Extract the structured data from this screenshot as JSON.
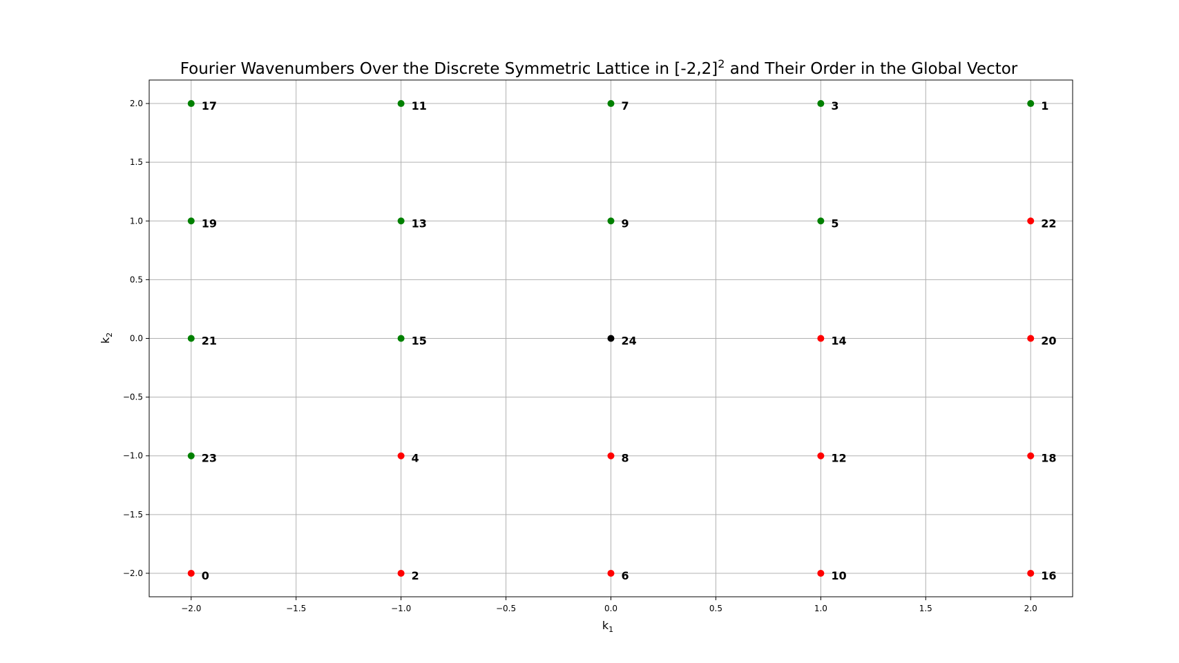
{
  "chart_data": {
    "type": "scatter",
    "title": "Fourier Wavenumbers Over the Discrete Symmetric Lattice in [-2,2]",
    "title_superscript": "2",
    "title_suffix": " and Their Order in the Global Vector",
    "xlabel": "k",
    "xlabel_subscript": "1",
    "ylabel": "k",
    "ylabel_subscript": "2",
    "xlim": [
      -2.2,
      2.2
    ],
    "ylim": [
      -2.2,
      2.2
    ],
    "grid": true,
    "xticks": [
      -2.0,
      -1.5,
      -1.0,
      -0.5,
      0.0,
      0.5,
      1.0,
      1.5,
      2.0
    ],
    "yticks": [
      -2.0,
      -1.5,
      -1.0,
      -0.5,
      0.0,
      0.5,
      1.0,
      1.5,
      2.0
    ],
    "xtick_labels": [
      "−2.0",
      "−1.5",
      "−1.0",
      "−0.5",
      "0.0",
      "0.5",
      "1.0",
      "1.5",
      "2.0"
    ],
    "ytick_labels": [
      "−2.0",
      "−1.5",
      "−1.0",
      "−0.5",
      "0.0",
      "0.5",
      "1.0",
      "1.5",
      "2.0"
    ],
    "colors": {
      "green": "#008000",
      "red": "#ff0000",
      "black": "#000000"
    },
    "points": [
      {
        "x": -2,
        "y": 2,
        "label": "17",
        "color": "green"
      },
      {
        "x": -1,
        "y": 2,
        "label": "11",
        "color": "green"
      },
      {
        "x": 0,
        "y": 2,
        "label": "7",
        "color": "green"
      },
      {
        "x": 1,
        "y": 2,
        "label": "3",
        "color": "green"
      },
      {
        "x": 2,
        "y": 2,
        "label": "1",
        "color": "green"
      },
      {
        "x": -2,
        "y": 1,
        "label": "19",
        "color": "green"
      },
      {
        "x": -1,
        "y": 1,
        "label": "13",
        "color": "green"
      },
      {
        "x": 0,
        "y": 1,
        "label": "9",
        "color": "green"
      },
      {
        "x": 1,
        "y": 1,
        "label": "5",
        "color": "green"
      },
      {
        "x": 2,
        "y": 1,
        "label": "22",
        "color": "red"
      },
      {
        "x": -2,
        "y": 0,
        "label": "21",
        "color": "green"
      },
      {
        "x": -1,
        "y": 0,
        "label": "15",
        "color": "green"
      },
      {
        "x": 0,
        "y": 0,
        "label": "24",
        "color": "black"
      },
      {
        "x": 1,
        "y": 0,
        "label": "14",
        "color": "red"
      },
      {
        "x": 2,
        "y": 0,
        "label": "20",
        "color": "red"
      },
      {
        "x": -2,
        "y": -1,
        "label": "23",
        "color": "green"
      },
      {
        "x": -1,
        "y": -1,
        "label": "4",
        "color": "red"
      },
      {
        "x": 0,
        "y": -1,
        "label": "8",
        "color": "red"
      },
      {
        "x": 1,
        "y": -1,
        "label": "12",
        "color": "red"
      },
      {
        "x": 2,
        "y": -1,
        "label": "18",
        "color": "red"
      },
      {
        "x": -2,
        "y": -2,
        "label": "0",
        "color": "red"
      },
      {
        "x": -1,
        "y": -2,
        "label": "2",
        "color": "red"
      },
      {
        "x": 0,
        "y": -2,
        "label": "6",
        "color": "red"
      },
      {
        "x": 1,
        "y": -2,
        "label": "10",
        "color": "red"
      },
      {
        "x": 2,
        "y": -2,
        "label": "16",
        "color": "red"
      }
    ]
  }
}
